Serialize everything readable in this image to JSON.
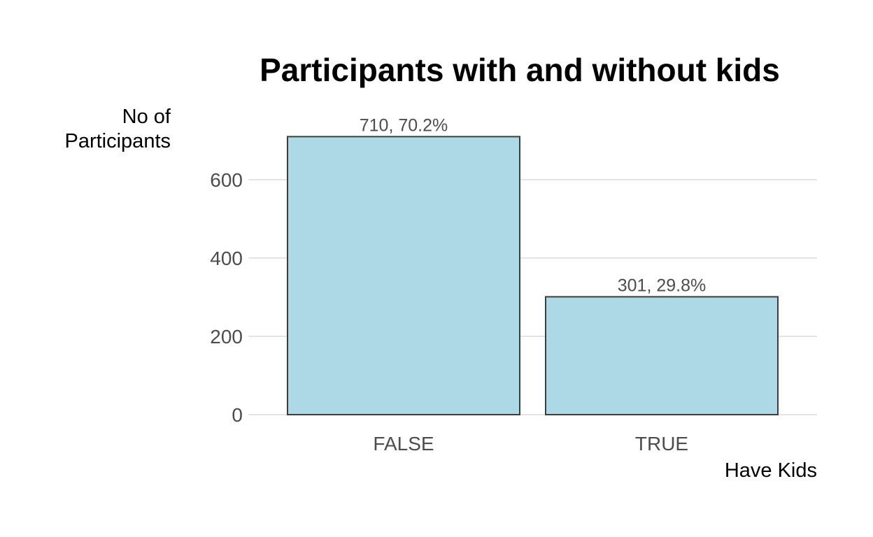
{
  "chart_data": {
    "type": "bar",
    "title": "Participants with and without kids",
    "xlabel": "Have Kids",
    "ylabel_lines": [
      "No of",
      "Participants"
    ],
    "categories": [
      "FALSE",
      "TRUE"
    ],
    "values": [
      710,
      301
    ],
    "data_labels": [
      "710, 70.2%",
      "301, 29.8%"
    ],
    "yticks": [
      0,
      200,
      400,
      600
    ],
    "ylim": [
      0,
      745
    ],
    "grid": "horizontal",
    "bar_color": "#add8e6",
    "bar_edge_color": "#3d3d3d"
  }
}
